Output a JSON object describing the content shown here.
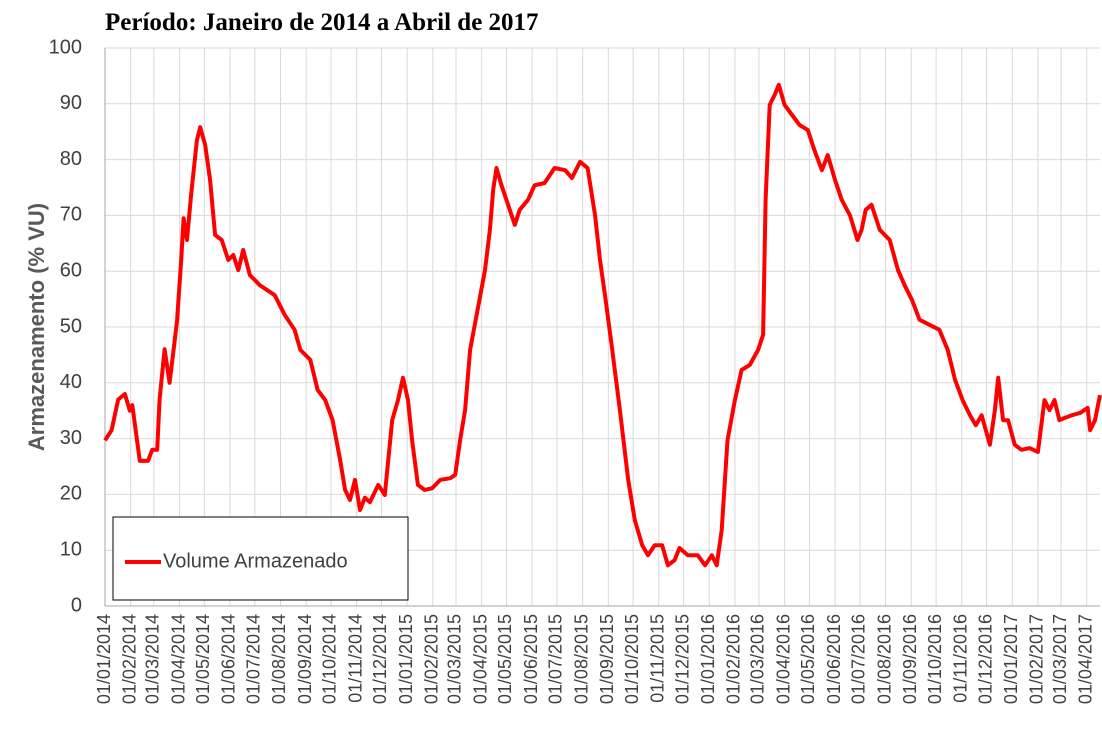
{
  "chart_data": {
    "type": "line",
    "title": "Período: Janeiro de 2014 a Abril de 2017",
    "y_label": "Armazenamento (% VU)",
    "x": [
      "01/01/2014",
      "09/01/2014",
      "17/01/2014",
      "25/01/2014",
      "31/01/2014",
      "03/02/2014",
      "12/02/2014",
      "22/02/2014",
      "27/02/2014",
      "05/03/2014",
      "08/03/2014",
      "14/03/2014",
      "20/03/2014",
      "29/03/2014",
      "03/04/2014",
      "06/04/2014",
      "10/04/2014",
      "15/04/2014",
      "22/04/2014",
      "26/04/2014",
      "02/05/2014",
      "08/05/2014",
      "14/05/2014",
      "22/05/2014",
      "30/05/2014",
      "05/06/2014",
      "11/06/2014",
      "17/06/2014",
      "25/06/2014",
      "07/07/2014",
      "25/07/2014",
      "06/08/2014",
      "18/08/2014",
      "25/08/2014",
      "06/09/2014",
      "15/09/2014",
      "24/09/2014",
      "03/10/2014",
      "12/10/2014",
      "18/10/2014",
      "24/10/2014",
      "30/10/2014",
      "05/11/2014",
      "11/11/2014",
      "17/11/2014",
      "27/11/2014",
      "05/12/2014",
      "14/12/2014",
      "21/12/2014",
      "27/12/2014",
      "02/01/2015",
      "07/01/2015",
      "14/01/2015",
      "22/01/2015",
      "31/01/2015",
      "10/02/2015",
      "22/02/2015",
      "28/02/2015",
      "06/03/2015",
      "12/03/2015",
      "18/03/2015",
      "27/03/2015",
      "05/04/2015",
      "11/04/2015",
      "15/04/2015",
      "19/04/2015",
      "25/04/2015",
      "03/05/2015",
      "11/05/2015",
      "17/05/2015",
      "27/05/2015",
      "04/06/2015",
      "16/06/2015",
      "28/06/2015",
      "11/07/2015",
      "19/07/2015",
      "29/07/2015",
      "07/08/2015",
      "16/08/2015",
      "22/08/2015",
      "28/08/2015",
      "05/09/2015",
      "15/09/2015",
      "25/09/2015",
      "03/10/2015",
      "12/10/2015",
      "19/10/2015",
      "27/10/2015",
      "05/11/2015",
      "12/11/2015",
      "20/11/2015",
      "26/11/2015",
      "06/12/2015",
      "18/12/2015",
      "27/12/2015",
      "04/01/2016",
      "10/01/2016",
      "16/01/2016",
      "23/01/2016",
      "01/02/2016",
      "09/02/2016",
      "19/02/2016",
      "29/02/2016",
      "06/03/2016",
      "09/03/2016",
      "14/03/2016",
      "20/03/2016",
      "25/03/2016",
      "01/04/2016",
      "10/04/2016",
      "19/04/2016",
      "29/04/2016",
      "07/05/2016",
      "16/05/2016",
      "23/05/2016",
      "01/06/2016",
      "09/06/2016",
      "19/06/2016",
      "28/06/2016",
      "03/07/2016",
      "08/07/2016",
      "15/07/2016",
      "25/07/2016",
      "06/08/2016",
      "16/08/2016",
      "24/08/2016",
      "02/09/2016",
      "11/09/2016",
      "23/09/2016",
      "05/10/2016",
      "15/10/2016",
      "24/10/2016",
      "02/11/2016",
      "11/11/2016",
      "18/11/2016",
      "25/11/2016",
      "05/12/2016",
      "11/12/2016",
      "15/12/2016",
      "21/12/2016",
      "27/12/2016",
      "04/01/2017",
      "12/01/2017",
      "22/01/2017",
      "01/02/2017",
      "09/02/2017",
      "15/02/2017",
      "21/02/2017",
      "27/02/2017",
      "05/03/2017",
      "14/03/2017",
      "24/03/2017",
      "02/04/2017",
      "05/04/2017",
      "11/04/2017",
      "17/04/2017"
    ],
    "series": [
      {
        "name": "Volume Armazenado",
        "color": "#ff0000",
        "values": [
          29.7,
          31.5,
          37,
          38,
          35,
          36,
          26,
          26,
          28,
          28,
          37,
          46,
          40,
          51,
          62,
          69.5,
          65.6,
          73.7,
          83.5,
          85.8,
          82.6,
          76.3,
          66.5,
          65.6,
          62,
          62.9,
          60.2,
          63.8,
          59.3,
          57.5,
          55.7,
          52.2,
          49.5,
          45.9,
          44.1,
          38.7,
          36.9,
          33.3,
          26.2,
          20.8,
          19,
          22.6,
          17.2,
          19.4,
          18.6,
          21.7,
          19.9,
          33.3,
          36.9,
          40.9,
          36.9,
          29.7,
          21.7,
          20.8,
          21.1,
          22.6,
          22.9,
          23.5,
          29.7,
          35.1,
          45.9,
          53,
          60.2,
          67.4,
          74.6,
          78.5,
          75.4,
          71.9,
          68.3,
          71,
          72.8,
          75.4,
          75.8,
          78.5,
          78.1,
          76.7,
          79.6,
          78.5,
          70.1,
          62,
          55.7,
          46.8,
          35.1,
          22.6,
          15.4,
          10.9,
          9.1,
          10.9,
          10.9,
          7.3,
          8.2,
          10.4,
          9.1,
          9.1,
          7.3,
          9.1,
          7.3,
          13.6,
          29.7,
          36.9,
          42.3,
          43.2,
          45.9,
          48.6,
          72.8,
          89.8,
          91.6,
          93.4,
          89.8,
          88,
          86.2,
          85.3,
          81.7,
          78.1,
          80.8,
          76.3,
          72.8,
          70,
          65.6,
          67.4,
          71,
          71.9,
          67.4,
          65.6,
          60.2,
          57.5,
          54.8,
          51.3,
          50.4,
          49.5,
          45.9,
          40.5,
          36.9,
          34.2,
          32.4,
          34.2,
          28.9,
          35.1,
          40.9,
          33.3,
          33.3,
          28.9,
          28,
          28.3,
          27.6,
          36.9,
          35.1,
          36.9,
          33.3,
          33.7,
          34.2,
          34.6,
          35.5,
          31.5,
          33.3,
          37.8
        ]
      }
    ],
    "xlim": [
      "01/01/2014",
      "17/04/2017"
    ],
    "xticks": [
      "01/01/2014",
      "01/02/2014",
      "01/03/2014",
      "01/04/2014",
      "01/05/2014",
      "01/06/2014",
      "01/07/2014",
      "01/08/2014",
      "01/09/2014",
      "01/10/2014",
      "01/11/2014",
      "01/12/2014",
      "01/01/2015",
      "01/02/2015",
      "01/03/2015",
      "01/04/2015",
      "01/05/2015",
      "01/06/2015",
      "01/07/2015",
      "01/08/2015",
      "01/09/2015",
      "01/10/2015",
      "01/11/2015",
      "01/12/2015",
      "01/01/2016",
      "01/02/2016",
      "01/03/2016",
      "01/04/2016",
      "01/05/2016",
      "01/06/2016",
      "01/07/2016",
      "01/08/2016",
      "01/09/2016",
      "01/10/2016",
      "01/11/2016",
      "01/12/2016",
      "01/01/2017",
      "01/02/2017",
      "01/03/2017",
      "01/04/2017"
    ],
    "ylim": [
      0,
      100
    ],
    "yticks": [
      0,
      10,
      20,
      30,
      40,
      50,
      60,
      70,
      80,
      90,
      100
    ],
    "grid": true,
    "legend": "lower left"
  }
}
